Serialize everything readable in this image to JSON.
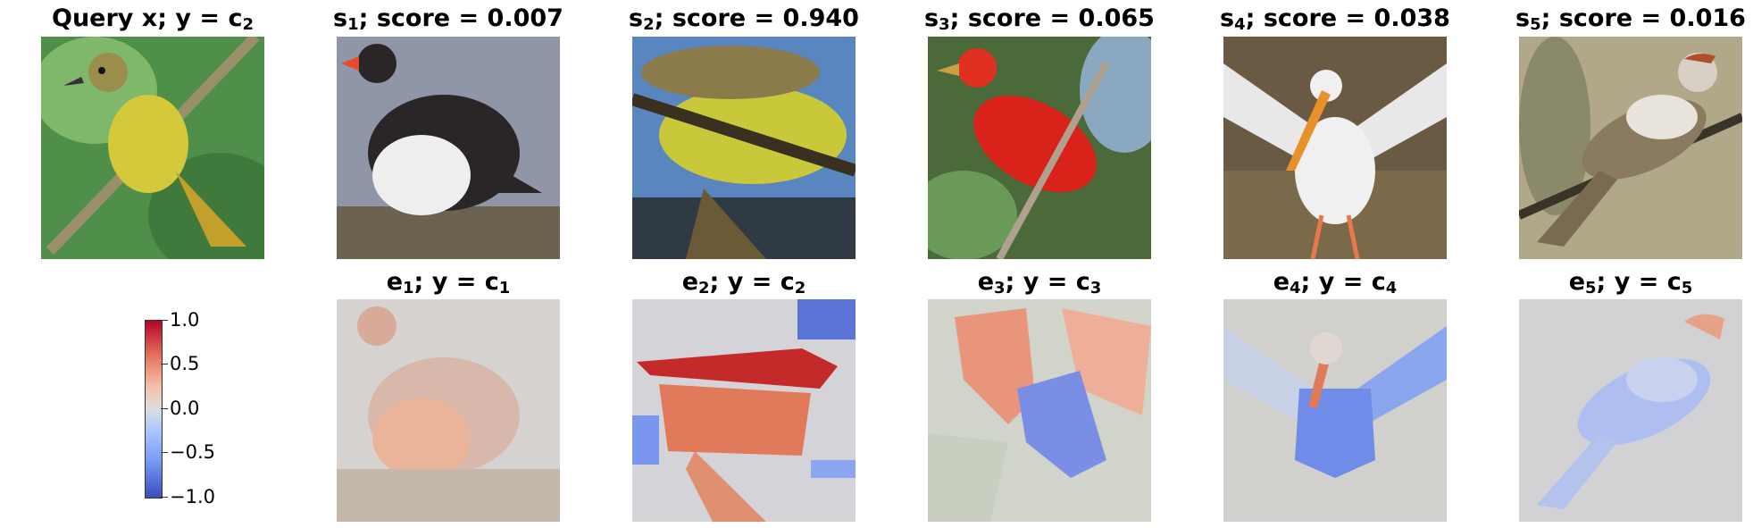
{
  "top_row": [
    {
      "label": "Query x; y = c",
      "sub": "2",
      "image": "yellow-bird-on-branch"
    },
    {
      "label": "s",
      "sub": "1",
      "suffix": "; score = 0.007",
      "image": "black-white-seabird"
    },
    {
      "label": "s",
      "sub": "2",
      "suffix": "; score = 0.940",
      "image": "yellow-bird-closeup"
    },
    {
      "label": "s",
      "sub": "3",
      "suffix": "; score = 0.065",
      "image": "red-bird-on-branch"
    },
    {
      "label": "s",
      "sub": "4",
      "suffix": "; score = 0.038",
      "image": "white-pelican"
    },
    {
      "label": "s",
      "sub": "5",
      "suffix": "; score = 0.016",
      "image": "striped-sparrow"
    }
  ],
  "bottom_row": [
    {
      "label": "e",
      "sub": "1",
      "mid": "; y = c",
      "sub2": "1"
    },
    {
      "label": "e",
      "sub": "2",
      "mid": "; y = c",
      "sub2": "2"
    },
    {
      "label": "e",
      "sub": "3",
      "mid": "; y = c",
      "sub2": "3"
    },
    {
      "label": "e",
      "sub": "4",
      "mid": "; y = c",
      "sub2": "4"
    },
    {
      "label": "e",
      "sub": "5",
      "mid": "; y = c",
      "sub2": "5"
    }
  ],
  "colorbar": {
    "ticks": [
      "1.0",
      "0.5",
      "0.0",
      "−0.5",
      "−1.0"
    ],
    "colors": {
      "high": "#b40426",
      "mid": "#dddddd",
      "low": "#3b4cc0"
    }
  }
}
